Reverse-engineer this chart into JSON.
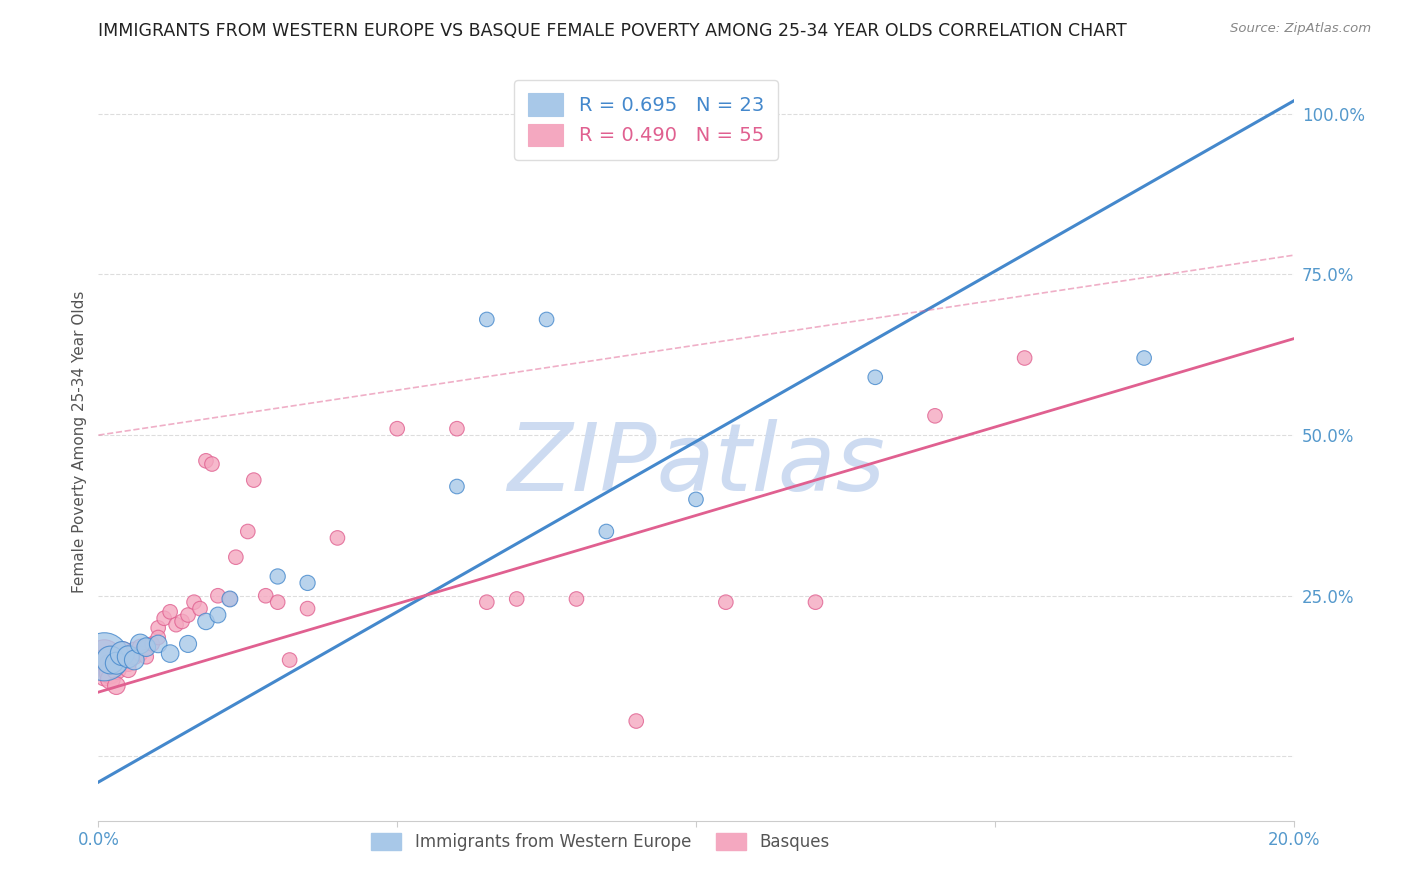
{
  "title": "IMMIGRANTS FROM WESTERN EUROPE VS BASQUE FEMALE POVERTY AMONG 25-34 YEAR OLDS CORRELATION CHART",
  "source": "Source: ZipAtlas.com",
  "ylabel": "Female Poverty Among 25-34 Year Olds",
  "r_blue": 0.695,
  "n_blue": 23,
  "r_pink": 0.49,
  "n_pink": 55,
  "legend_labels": [
    "Immigrants from Western Europe",
    "Basques"
  ],
  "blue_color": "#a8c8e8",
  "pink_color": "#f4a8c0",
  "blue_line_color": "#4488cc",
  "pink_line_color": "#e06090",
  "watermark": "ZIPatlas",
  "watermark_color": "#c8d8f0",
  "xlim": [
    0.0,
    0.2
  ],
  "ylim": [
    -0.1,
    1.08
  ],
  "yticks": [
    0.0,
    0.25,
    0.5,
    0.75,
    1.0
  ],
  "ytick_labels": [
    "",
    "25.0%",
    "50.0%",
    "75.0%",
    "100.0%"
  ],
  "xticks": [
    0.0,
    0.05,
    0.1,
    0.15,
    0.2
  ],
  "xtick_labels": [
    "0.0%",
    "",
    "",
    "",
    "20.0%"
  ],
  "blue_scatter_x": [
    0.001,
    0.002,
    0.003,
    0.004,
    0.005,
    0.006,
    0.007,
    0.008,
    0.01,
    0.012,
    0.015,
    0.018,
    0.02,
    0.022,
    0.03,
    0.035,
    0.06,
    0.065,
    0.075,
    0.085,
    0.1,
    0.13,
    0.175
  ],
  "blue_scatter_y": [
    0.155,
    0.15,
    0.145,
    0.16,
    0.155,
    0.15,
    0.175,
    0.17,
    0.175,
    0.16,
    0.175,
    0.21,
    0.22,
    0.245,
    0.28,
    0.27,
    0.42,
    0.68,
    0.68,
    0.35,
    0.4,
    0.59,
    0.62
  ],
  "blue_scatter_sizes": [
    1200,
    400,
    250,
    300,
    250,
    200,
    200,
    180,
    160,
    160,
    150,
    140,
    130,
    130,
    120,
    120,
    110,
    110,
    110,
    110,
    110,
    110,
    110
  ],
  "pink_scatter_x": [
    0.001,
    0.001,
    0.001,
    0.001,
    0.002,
    0.002,
    0.002,
    0.002,
    0.003,
    0.003,
    0.003,
    0.004,
    0.004,
    0.004,
    0.005,
    0.005,
    0.005,
    0.006,
    0.006,
    0.007,
    0.007,
    0.008,
    0.008,
    0.009,
    0.01,
    0.01,
    0.011,
    0.012,
    0.013,
    0.014,
    0.015,
    0.016,
    0.017,
    0.018,
    0.019,
    0.02,
    0.022,
    0.023,
    0.025,
    0.026,
    0.028,
    0.03,
    0.032,
    0.035,
    0.04,
    0.05,
    0.06,
    0.065,
    0.07,
    0.08,
    0.09,
    0.105,
    0.12,
    0.14,
    0.155
  ],
  "pink_scatter_y": [
    0.155,
    0.145,
    0.135,
    0.125,
    0.15,
    0.14,
    0.13,
    0.12,
    0.145,
    0.135,
    0.11,
    0.155,
    0.165,
    0.15,
    0.155,
    0.145,
    0.135,
    0.165,
    0.155,
    0.17,
    0.16,
    0.17,
    0.155,
    0.175,
    0.2,
    0.185,
    0.215,
    0.225,
    0.205,
    0.21,
    0.22,
    0.24,
    0.23,
    0.46,
    0.455,
    0.25,
    0.245,
    0.31,
    0.35,
    0.43,
    0.25,
    0.24,
    0.15,
    0.23,
    0.34,
    0.51,
    0.51,
    0.24,
    0.245,
    0.245,
    0.055,
    0.24,
    0.24,
    0.53,
    0.62
  ],
  "pink_scatter_sizes": [
    600,
    400,
    300,
    200,
    400,
    300,
    250,
    200,
    250,
    200,
    160,
    200,
    160,
    160,
    160,
    140,
    130,
    140,
    130,
    130,
    120,
    120,
    110,
    110,
    110,
    110,
    110,
    110,
    110,
    110,
    110,
    110,
    110,
    110,
    110,
    110,
    110,
    110,
    110,
    110,
    110,
    110,
    110,
    110,
    110,
    110,
    110,
    110,
    110,
    110,
    110,
    110,
    110,
    110,
    110
  ],
  "blue_line_x": [
    0.0,
    0.2
  ],
  "blue_line_y": [
    -0.04,
    1.02
  ],
  "pink_line_x": [
    0.0,
    0.2
  ],
  "pink_line_y": [
    0.1,
    0.65
  ],
  "diag_line_x": [
    0.0,
    0.2
  ],
  "diag_line_y": [
    0.5,
    0.78
  ],
  "grid_color": "#dddddd",
  "bg_color": "#ffffff",
  "title_color": "#222222",
  "tick_color": "#5599cc"
}
